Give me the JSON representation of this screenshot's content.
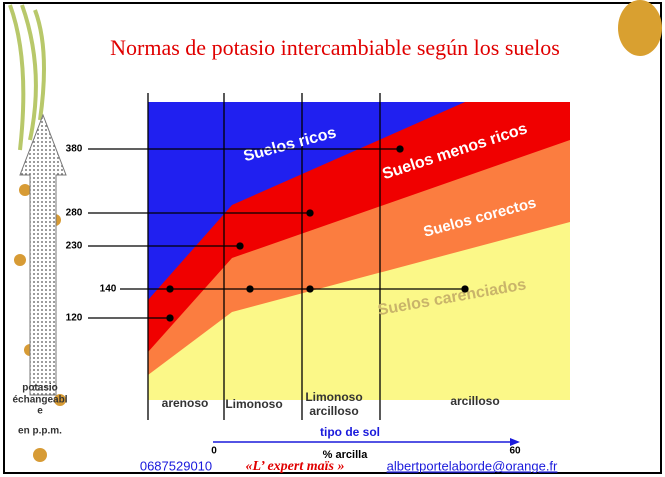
{
  "header": {
    "title": "Normas de potasio intercambiable según los suelos"
  },
  "zones": [
    "Suelos ricos",
    "Suelos menos ricos",
    "Suelos corectos",
    "Suelos carenciados"
  ],
  "levels": [
    "380",
    "280",
    "230",
    "140",
    "120"
  ],
  "soil_types": [
    "arenoso",
    "Limonoso",
    "Limonoso",
    "arcilloso",
    "arcilloso"
  ],
  "y_axis_label": [
    "potasio",
    "échangeabl",
    "e",
    "en p.p.m."
  ],
  "x_axis": {
    "title": "tipo de sol",
    "start": "0",
    "end": "60",
    "label": "% arcilla"
  },
  "footer": {
    "phone": "0687529010",
    "brand": "«L’ expert maïs »",
    "email": "albertportelaborde@orange.fr"
  }
}
